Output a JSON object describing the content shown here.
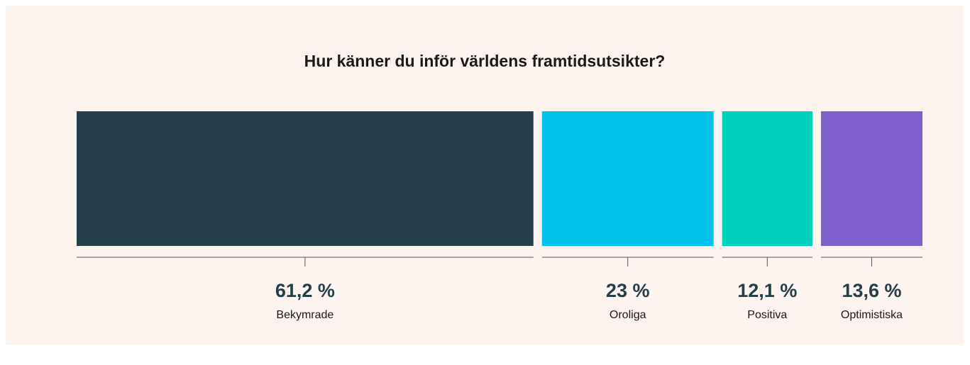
{
  "chart_data": {
    "type": "bar",
    "title": "Hur känner du inför världens framtidsutsikter?",
    "categories": [
      "Bekymrade",
      "Oroliga",
      "Positiva",
      "Optimistiska"
    ],
    "values": [
      61.2,
      23,
      12.1,
      13.6
    ],
    "value_labels": [
      "61,2 %",
      "23 %",
      "12,1 %",
      "13,6 %"
    ],
    "colors": [
      "#243e4a",
      "#00c3eb",
      "#00d1bd",
      "#7f5fcc"
    ]
  }
}
